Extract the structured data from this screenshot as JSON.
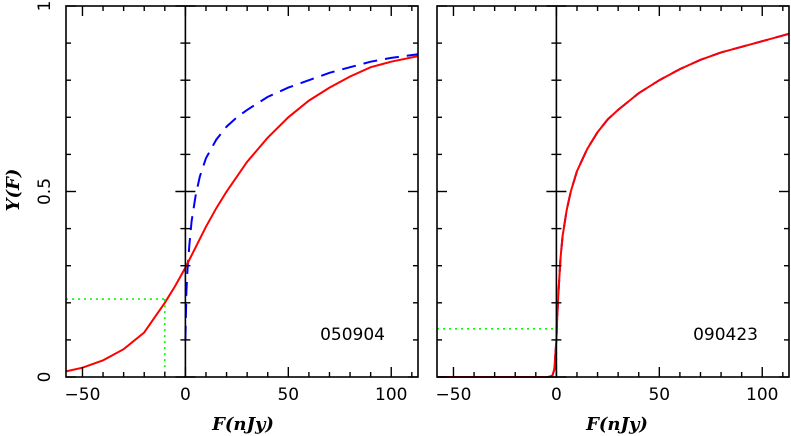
{
  "chart_data": [
    {
      "type": "line",
      "annotation": "050904",
      "xlim": [
        -58,
        113
      ],
      "ylim": [
        0,
        1
      ],
      "xticks": [
        -50,
        0,
        50,
        100
      ],
      "yticks": [
        0,
        0.5,
        1
      ],
      "ytick_labels": [
        "0",
        "0.5",
        "1"
      ],
      "ylabel": "Y(F)",
      "xlabel": "F(nJy)",
      "vline_x": 0,
      "series": [
        {
          "color": "#0000ff",
          "style": "dashed",
          "x": [
            0,
            0.5,
            1,
            2,
            3,
            5,
            7,
            10,
            15,
            20,
            25,
            30,
            40,
            50,
            60,
            70,
            80,
            90,
            100,
            113
          ],
          "y": [
            0.1,
            0.23,
            0.29,
            0.36,
            0.42,
            0.49,
            0.54,
            0.59,
            0.64,
            0.675,
            0.7,
            0.72,
            0.755,
            0.78,
            0.8,
            0.82,
            0.835,
            0.85,
            0.86,
            0.87
          ]
        },
        {
          "color": "#ff0000",
          "style": "solid",
          "x": [
            -58,
            -50,
            -40,
            -30,
            -20,
            -10,
            -5,
            0,
            5,
            10,
            15,
            20,
            30,
            40,
            50,
            60,
            70,
            80,
            90,
            100,
            113
          ],
          "y": [
            0.015,
            0.025,
            0.045,
            0.075,
            0.12,
            0.2,
            0.245,
            0.295,
            0.35,
            0.405,
            0.455,
            0.5,
            0.58,
            0.645,
            0.7,
            0.745,
            0.78,
            0.81,
            0.835,
            0.85,
            0.865
          ]
        }
      ],
      "dotted_guides": {
        "color": "#00ff00",
        "x": -10,
        "y": 0.21
      }
    },
    {
      "type": "line",
      "annotation": "090423",
      "xlim": [
        -58,
        113
      ],
      "ylim": [
        0,
        1
      ],
      "xticks": [
        -50,
        0,
        50,
        100
      ],
      "yticks": [
        0,
        0.5,
        1
      ],
      "xlabel": "F(nJy)",
      "vline_x": 0,
      "series": [
        {
          "color": "#0000ff",
          "style": "dashed",
          "x": [
            -58,
            -4,
            -2,
            -1,
            0,
            0.5,
            1,
            2,
            3,
            5,
            7,
            10,
            15,
            20,
            25,
            30,
            40,
            50,
            60,
            70,
            80,
            90,
            100,
            113
          ],
          "y": [
            0,
            0,
            0.003,
            0.02,
            0.1,
            0.17,
            0.23,
            0.32,
            0.38,
            0.45,
            0.5,
            0.555,
            0.615,
            0.66,
            0.695,
            0.72,
            0.765,
            0.8,
            0.83,
            0.855,
            0.875,
            0.89,
            0.905,
            0.925
          ]
        },
        {
          "color": "#ff0000",
          "style": "solid",
          "x": [
            -58,
            -4,
            -2,
            -1,
            0,
            0.5,
            1,
            2,
            3,
            5,
            7,
            10,
            15,
            20,
            25,
            30,
            40,
            50,
            60,
            70,
            80,
            90,
            100,
            113
          ],
          "y": [
            0,
            0,
            0.003,
            0.02,
            0.1,
            0.17,
            0.23,
            0.32,
            0.38,
            0.45,
            0.5,
            0.555,
            0.615,
            0.66,
            0.695,
            0.72,
            0.765,
            0.8,
            0.83,
            0.855,
            0.875,
            0.89,
            0.905,
            0.925
          ]
        }
      ],
      "dotted_guides": {
        "color": "#00ff00",
        "x": 0,
        "y": 0.13
      }
    }
  ]
}
